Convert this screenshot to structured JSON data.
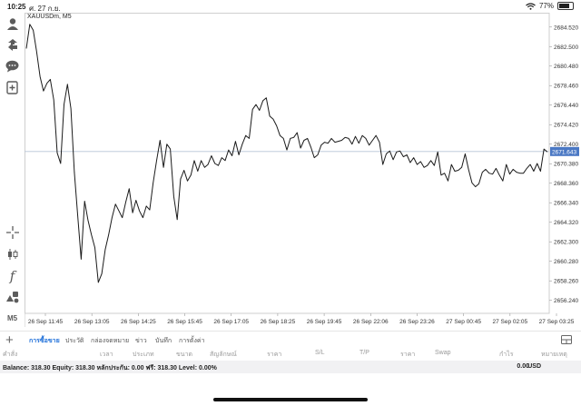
{
  "status": {
    "time": "10:25",
    "date": "ศ. 27 ก.ย.",
    "battery": "77%",
    "battery_level": 0.77
  },
  "chart": {
    "title": "XAUUSDm, M5",
    "current_price": "2671.643",
    "colors": {
      "line": "#1a1a1a",
      "bid_line": "#b8c4d6",
      "price_tag": "#4a78c4",
      "grid": "#f0f0f0"
    }
  },
  "sidebar": {
    "icons": [
      "person-icon",
      "share-icon",
      "chat-icon",
      "document-plus-icon",
      "crosshair-icon",
      "candles-icon",
      "function-icon",
      "objects-icon"
    ],
    "timeframe": "M5"
  },
  "tabs": {
    "items": [
      "การซื้อขาย",
      "ประวัติ",
      "กล่องจดหมาย",
      "ข่าว",
      "บันทึก",
      "การตั้งค่า"
    ],
    "active_index": 0
  },
  "columns": [
    "คำสั่ง",
    "เวลา",
    "ประเภท",
    "ขนาด",
    "สัญลักษณ์",
    "ราคา",
    "S/L",
    "T/P",
    "ราคา",
    "Swap",
    "กำไร",
    "หมายเหตุ"
  ],
  "account": {
    "balance_line": "Balance: 318.30 Equity: 318.30 หลักประกัน: 0.00 ฟรี: 318.30 Level: 0.00%",
    "profit": "0.00",
    "currency": "USD"
  },
  "chart_data": {
    "type": "line",
    "title": "XAUUSDm, M5",
    "ylim": [
      2654.9,
      2686.0
    ],
    "y_ticks": [
      "2684.520",
      "2682.500",
      "2680.480",
      "2678.460",
      "2676.440",
      "2674.420",
      "2672.400",
      "2670.380",
      "2668.360",
      "2666.340",
      "2664.320",
      "2662.300",
      "2660.280",
      "2658.260",
      "2656.240"
    ],
    "x_ticks": [
      "26 Sep 11:45",
      "26 Sep 13:05",
      "26 Sep 14:25",
      "26 Sep 15:45",
      "26 Sep 17:05",
      "26 Sep 18:25",
      "26 Sep 19:45",
      "26 Sep 22:06",
      "26 Sep 23:26",
      "27 Sep 00:45",
      "27 Sep 02:05",
      "27 Sep 03:25"
    ],
    "current_price": 2671.643,
    "grid": false,
    "series": [
      {
        "values": [
          2682.3,
          2684.8,
          2684.2,
          2682.0,
          2679.4,
          2677.9,
          2678.7,
          2679.1,
          2677.0,
          2671.5,
          2670.4,
          2676.5,
          2678.6,
          2676.1,
          2669.5,
          2665.0,
          2660.5,
          2666.5,
          2664.5,
          2663.0,
          2661.7,
          2658.1,
          2659.0,
          2661.5,
          2663.0,
          2664.8,
          2666.2,
          2665.5,
          2664.8,
          2666.4,
          2667.8,
          2665.3,
          2666.6,
          2665.5,
          2664.8,
          2666.0,
          2665.6,
          2668.4,
          2670.7,
          2672.8,
          2670.0,
          2672.4,
          2671.9,
          2667.0,
          2664.6,
          2668.8,
          2669.7,
          2668.6,
          2669.2,
          2670.7,
          2669.6,
          2670.7,
          2670.0,
          2670.3,
          2671.2,
          2670.4,
          2670.2,
          2671.0,
          2670.7,
          2671.8,
          2671.2,
          2672.7,
          2671.3,
          2672.4,
          2673.3,
          2673.0,
          2676.0,
          2676.5,
          2675.9,
          2676.9,
          2677.2,
          2675.3,
          2675.0,
          2674.3,
          2673.3,
          2673.0,
          2671.8,
          2673.0,
          2673.1,
          2673.6,
          2672.0,
          2672.8,
          2673.0,
          2672.1,
          2671.0,
          2671.3,
          2672.3,
          2672.6,
          2672.5,
          2673.0,
          2672.6,
          2672.7,
          2672.8,
          2673.1,
          2673.0,
          2672.4,
          2673.2,
          2672.5,
          2673.3,
          2673.0,
          2672.3,
          2672.8,
          2673.3,
          2672.6,
          2670.3,
          2671.4,
          2671.7,
          2670.8,
          2671.6,
          2671.7,
          2671.1,
          2671.3,
          2670.5,
          2671.0,
          2670.3,
          2670.6,
          2670.0,
          2670.2,
          2670.7,
          2670.2,
          2671.6,
          2669.2,
          2669.4,
          2668.6,
          2670.3,
          2669.6,
          2669.7,
          2670.0,
          2671.4,
          2669.8,
          2668.4,
          2668.0,
          2668.3,
          2669.5,
          2669.8,
          2669.4,
          2669.3,
          2669.9,
          2669.2,
          2668.6,
          2670.3,
          2669.3,
          2669.8,
          2669.5,
          2669.4,
          2669.4,
          2669.9,
          2670.3,
          2669.6,
          2670.4,
          2669.6,
          2671.9,
          2671.6
        ]
      }
    ]
  }
}
